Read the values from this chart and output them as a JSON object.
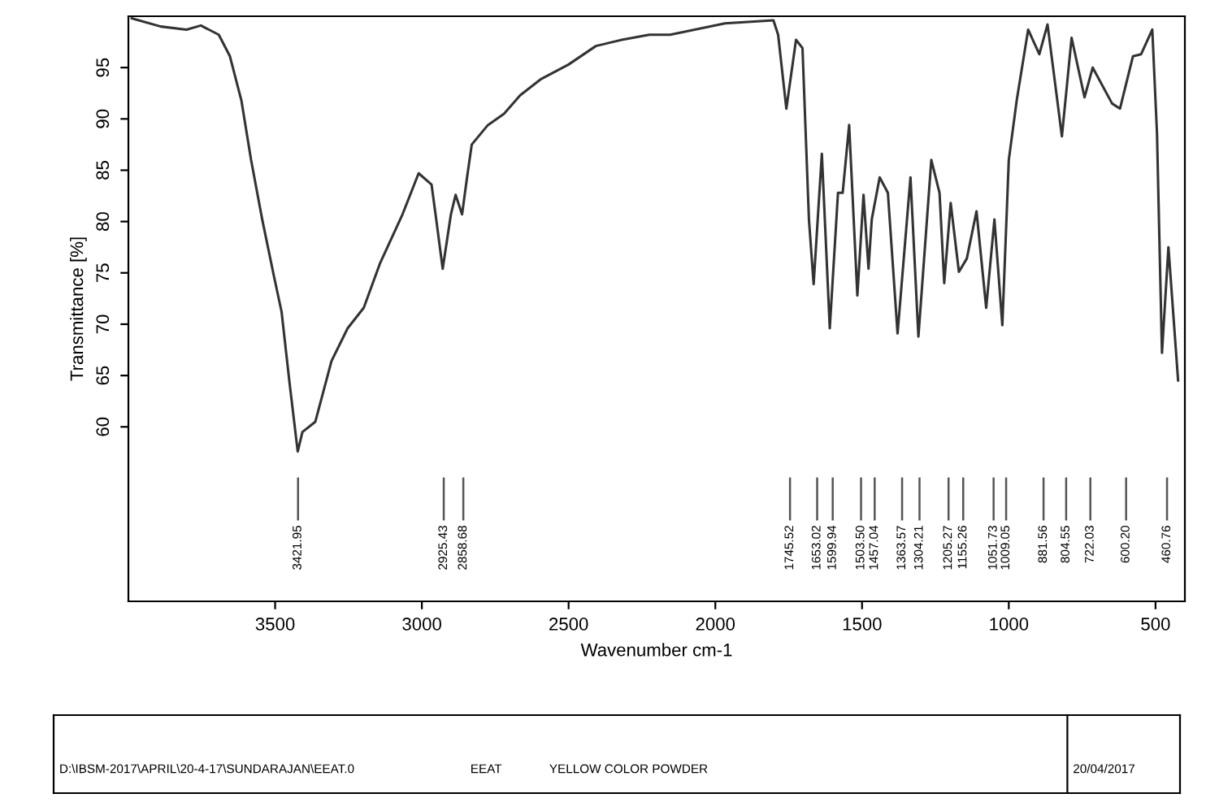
{
  "chart_data": {
    "type": "line",
    "xlabel": "Wavenumber cm-1",
    "ylabel": "Transmittance [%]",
    "xlim": [
      4000,
      400
    ],
    "ylim": [
      43,
      100
    ],
    "xticks": [
      3500,
      3000,
      2500,
      2000,
      1500,
      1000,
      500
    ],
    "yticks": [
      60,
      65,
      70,
      75,
      80,
      85,
      90,
      95
    ],
    "grid": false,
    "legend": false,
    "marker": "none",
    "line_style": "solid",
    "series": [
      {
        "color": "#333333",
        "x": [
          3989,
          3890,
          3802,
          3753,
          3692,
          3654,
          3615,
          3582,
          3544,
          3505,
          3478,
          3451,
          3423,
          3407,
          3363,
          3308,
          3253,
          3198,
          3143,
          3066,
          3011,
          2967,
          2951,
          2929,
          2901,
          2885,
          2863,
          2846,
          2830,
          2775,
          2720,
          2665,
          2593,
          2500,
          2407,
          2319,
          2225,
          2154,
          1967,
          1802,
          1786,
          1758,
          1725,
          1703,
          1681,
          1665,
          1637,
          1610,
          1582,
          1566,
          1544,
          1516,
          1495,
          1478,
          1467,
          1440,
          1412,
          1379,
          1335,
          1308,
          1264,
          1236,
          1220,
          1198,
          1170,
          1143,
          1110,
          1077,
          1049,
          1022,
          1000,
          973,
          934,
          896,
          868,
          819,
          786,
          742,
          714,
          648,
          621,
          577,
          549,
          511,
          495,
          478,
          456,
          423
        ],
        "values": [
          99.8,
          99.0,
          98.7,
          99.1,
          98.2,
          96.1,
          91.8,
          86,
          80.2,
          74.8,
          71.2,
          64.3,
          57.6,
          59.5,
          60.5,
          66.4,
          69.6,
          71.6,
          75.9,
          80.7,
          84.7,
          83.6,
          80.2,
          75.4,
          80.7,
          82.6,
          80.7,
          84.3,
          87.5,
          89.4,
          90.5,
          92.3,
          93.9,
          95.3,
          97.1,
          97.7,
          98.2,
          98.2,
          99.3,
          99.6,
          98.2,
          91,
          97.7,
          96.9,
          80.2,
          73.9,
          86.6,
          69.6,
          82.8,
          82.8,
          89.4,
          72.8,
          82.6,
          75.4,
          80.2,
          84.3,
          82.8,
          69.1,
          84.3,
          68.8,
          86,
          82.8,
          74,
          81.8,
          75.1,
          76.4,
          81,
          71.6,
          80.2,
          69.9,
          86,
          91.8,
          98.7,
          96.3,
          99.2,
          88.3,
          97.9,
          92.1,
          95,
          91.5,
          91,
          96.1,
          96.3,
          98.7,
          88.6,
          67.2,
          77.5,
          64.5
        ]
      }
    ],
    "ref_lines": [
      {
        "axis": "x",
        "value": 3421.95,
        "label": "3421.95"
      },
      {
        "axis": "x",
        "value": 2925.43,
        "label": "2925.43"
      },
      {
        "axis": "x",
        "value": 2858.68,
        "label": "2858.68"
      },
      {
        "axis": "x",
        "value": 1745.52,
        "label": "1745.52"
      },
      {
        "axis": "x",
        "value": 1653.02,
        "label": "1653.02"
      },
      {
        "axis": "x",
        "value": 1599.94,
        "label": "1599.94"
      },
      {
        "axis": "x",
        "value": 1503.5,
        "label": "1503.50"
      },
      {
        "axis": "x",
        "value": 1457.04,
        "label": "1457.04"
      },
      {
        "axis": "x",
        "value": 1363.57,
        "label": "1363.57"
      },
      {
        "axis": "x",
        "value": 1304.21,
        "label": "1304.21"
      },
      {
        "axis": "x",
        "value": 1205.27,
        "label": "1205.27"
      },
      {
        "axis": "x",
        "value": 1155.26,
        "label": "1155.26"
      },
      {
        "axis": "x",
        "value": 1051.73,
        "label": "1051.73"
      },
      {
        "axis": "x",
        "value": 1009.05,
        "label": "1009.05"
      },
      {
        "axis": "x",
        "value": 881.56,
        "label": "881.56"
      },
      {
        "axis": "x",
        "value": 804.55,
        "label": "804.55"
      },
      {
        "axis": "x",
        "value": 722.03,
        "label": "722.03"
      },
      {
        "axis": "x",
        "value": 600.2,
        "label": "600.20"
      },
      {
        "axis": "x",
        "value": 460.76,
        "label": "460.76"
      }
    ],
    "annotations": [
      "D:\\IBSM-2017\\APRIL\\20-4-17\\SUNDARAJAN\\EEAT.0",
      "EEAT",
      "YELLOW COLOR POWDER",
      "20/04/2017"
    ]
  }
}
